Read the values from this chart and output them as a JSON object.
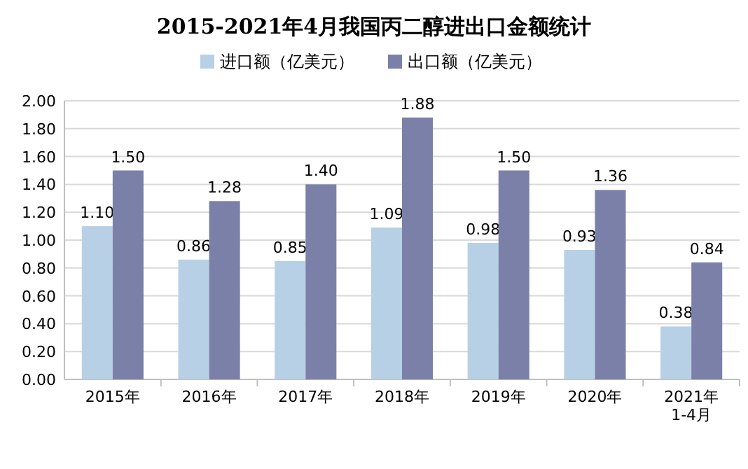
{
  "chart_data": {
    "type": "bar",
    "title": "2015-2021年4月我国丙二醇进出口金额统计",
    "categories": [
      "2015年",
      "2016年",
      "2017年",
      "2018年",
      "2019年",
      "2020年",
      "2021年\n1-4月"
    ],
    "series": [
      {
        "name": "进口额（亿美元）",
        "color": "#b7d0e6",
        "values": [
          1.1,
          0.86,
          0.85,
          1.09,
          0.98,
          0.93,
          0.38
        ],
        "value_labels": [
          "1.10",
          "0.86",
          "0.85",
          "1.09",
          "0.98",
          "0.93",
          "0.38"
        ]
      },
      {
        "name": "出口额（亿美元）",
        "color": "#7b80a9",
        "values": [
          1.5,
          1.28,
          1.4,
          1.88,
          1.5,
          1.36,
          0.84
        ],
        "value_labels": [
          "1.50",
          "1.28",
          "1.40",
          "1.88",
          "1.50",
          "1.36",
          "0.84"
        ]
      }
    ],
    "ylim": [
      0,
      2
    ],
    "yticks": [
      {
        "value": 0,
        "label": "0.00"
      },
      {
        "value": 0.2,
        "label": "0.20"
      },
      {
        "value": 0.4,
        "label": "0.40"
      },
      {
        "value": 0.6,
        "label": "0.60"
      },
      {
        "value": 0.8,
        "label": "0.80"
      },
      {
        "value": 1,
        "label": "1.00"
      },
      {
        "value": 1.2,
        "label": "1.20"
      },
      {
        "value": 1.4,
        "label": "1.40"
      },
      {
        "value": 1.6,
        "label": "1.60"
      },
      {
        "value": 1.8,
        "label": "1.80"
      },
      {
        "value": 2,
        "label": "2.00"
      }
    ],
    "grid": "y",
    "legend": "top"
  }
}
